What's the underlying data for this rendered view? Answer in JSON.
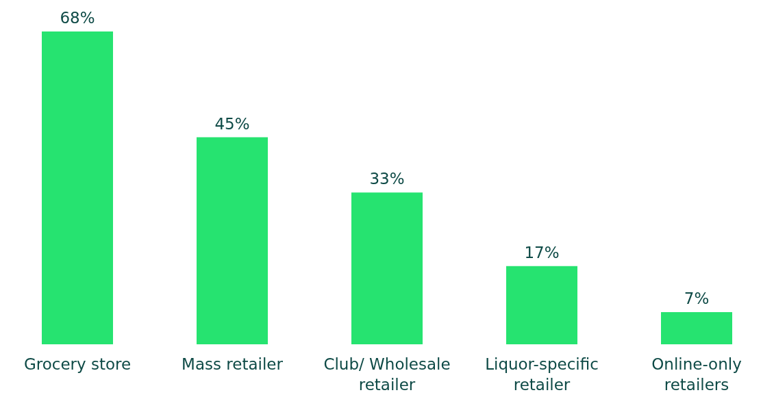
{
  "chart_data": {
    "type": "bar",
    "categories": [
      "Grocery store",
      "Mass retailer",
      "Club/ Wholesale retailer",
      "Liquor-specific retailer",
      "Online-only retailers"
    ],
    "values": [
      68,
      45,
      33,
      17,
      7
    ],
    "value_labels": [
      "68%",
      "45%",
      "33%",
      "17%",
      "7%"
    ],
    "color": "#26e370",
    "grid": false,
    "legend": false
  }
}
